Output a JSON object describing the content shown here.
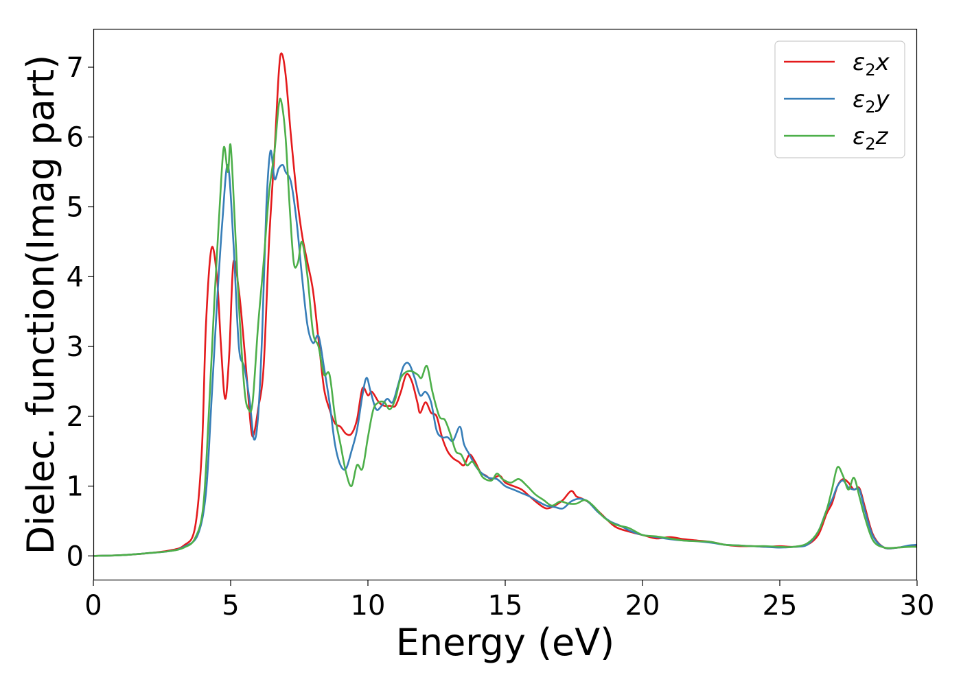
{
  "chart_data": {
    "type": "line",
    "title": "",
    "xlabel": "Energy (eV)",
    "ylabel": "Dielec. function(Imag part)",
    "xlim": [
      0,
      30
    ],
    "ylim": [
      -0.35,
      7.55
    ],
    "xticks": [
      0,
      5,
      10,
      15,
      20,
      25,
      30
    ],
    "yticks": [
      0,
      1,
      2,
      3,
      4,
      5,
      6,
      7
    ],
    "grid": false,
    "legend_position": "top-right",
    "series": [
      {
        "name": "ε₂x",
        "legend_base": "ε",
        "legend_sub": "2",
        "legend_suffix": "x",
        "color": "#e41a1c",
        "points": [
          [
            0,
            0
          ],
          [
            1,
            0.01
          ],
          [
            2,
            0.04
          ],
          [
            2.8,
            0.08
          ],
          [
            3.3,
            0.15
          ],
          [
            3.7,
            0.4
          ],
          [
            3.95,
            1.5
          ],
          [
            4.1,
            3.3
          ],
          [
            4.3,
            4.4
          ],
          [
            4.5,
            4.0
          ],
          [
            4.65,
            3.0
          ],
          [
            4.8,
            2.25
          ],
          [
            4.95,
            2.9
          ],
          [
            5.1,
            4.2
          ],
          [
            5.3,
            3.8
          ],
          [
            5.45,
            3.2
          ],
          [
            5.6,
            2.5
          ],
          [
            5.75,
            1.8
          ],
          [
            5.85,
            1.75
          ],
          [
            6.0,
            2.1
          ],
          [
            6.2,
            2.7
          ],
          [
            6.4,
            4.5
          ],
          [
            6.6,
            5.8
          ],
          [
            6.75,
            6.9
          ],
          [
            6.85,
            7.2
          ],
          [
            7.0,
            6.9
          ],
          [
            7.2,
            6.0
          ],
          [
            7.4,
            5.2
          ],
          [
            7.6,
            4.6
          ],
          [
            7.8,
            4.2
          ],
          [
            8.0,
            3.8
          ],
          [
            8.2,
            3.1
          ],
          [
            8.4,
            2.4
          ],
          [
            8.6,
            2.1
          ],
          [
            8.8,
            1.9
          ],
          [
            9.0,
            1.85
          ],
          [
            9.2,
            1.75
          ],
          [
            9.4,
            1.75
          ],
          [
            9.6,
            1.95
          ],
          [
            9.8,
            2.4
          ],
          [
            10.0,
            2.3
          ],
          [
            10.15,
            2.35
          ],
          [
            10.4,
            2.2
          ],
          [
            10.6,
            2.15
          ],
          [
            10.8,
            2.15
          ],
          [
            11.0,
            2.15
          ],
          [
            11.2,
            2.35
          ],
          [
            11.4,
            2.6
          ],
          [
            11.6,
            2.5
          ],
          [
            11.8,
            2.2
          ],
          [
            11.9,
            2.05
          ],
          [
            12.1,
            2.2
          ],
          [
            12.3,
            2.05
          ],
          [
            12.5,
            2.0
          ],
          [
            12.7,
            1.7
          ],
          [
            12.9,
            1.5
          ],
          [
            13.1,
            1.4
          ],
          [
            13.3,
            1.35
          ],
          [
            13.5,
            1.3
          ],
          [
            13.7,
            1.45
          ],
          [
            13.9,
            1.35
          ],
          [
            14.1,
            1.2
          ],
          [
            14.3,
            1.15
          ],
          [
            14.5,
            1.1
          ],
          [
            14.8,
            1.15
          ],
          [
            15.0,
            1.05
          ],
          [
            15.3,
            1.0
          ],
          [
            15.6,
            0.95
          ],
          [
            15.9,
            0.85
          ],
          [
            16.2,
            0.75
          ],
          [
            16.5,
            0.68
          ],
          [
            16.8,
            0.72
          ],
          [
            17.1,
            0.8
          ],
          [
            17.4,
            0.93
          ],
          [
            17.6,
            0.85
          ],
          [
            17.8,
            0.82
          ],
          [
            18.1,
            0.75
          ],
          [
            18.5,
            0.6
          ],
          [
            19.0,
            0.42
          ],
          [
            19.5,
            0.35
          ],
          [
            20.0,
            0.3
          ],
          [
            20.5,
            0.25
          ],
          [
            21.0,
            0.27
          ],
          [
            21.5,
            0.24
          ],
          [
            22.0,
            0.22
          ],
          [
            22.5,
            0.2
          ],
          [
            23.0,
            0.16
          ],
          [
            23.5,
            0.14
          ],
          [
            24.0,
            0.14
          ],
          [
            24.5,
            0.13
          ],
          [
            25.0,
            0.14
          ],
          [
            25.5,
            0.13
          ],
          [
            26.0,
            0.16
          ],
          [
            26.4,
            0.3
          ],
          [
            26.7,
            0.6
          ],
          [
            26.9,
            0.75
          ],
          [
            27.1,
            1.0
          ],
          [
            27.3,
            1.1
          ],
          [
            27.5,
            1.05
          ],
          [
            27.7,
            0.95
          ],
          [
            27.9,
            0.97
          ],
          [
            28.1,
            0.7
          ],
          [
            28.4,
            0.3
          ],
          [
            28.8,
            0.12
          ],
          [
            29.3,
            0.12
          ],
          [
            29.7,
            0.14
          ],
          [
            30,
            0.14
          ]
        ]
      },
      {
        "name": "ε₂y",
        "legend_base": "ε",
        "legend_sub": "2",
        "legend_suffix": "y",
        "color": "#377eb8",
        "points": [
          [
            0,
            0
          ],
          [
            1,
            0.01
          ],
          [
            2,
            0.04
          ],
          [
            2.8,
            0.07
          ],
          [
            3.3,
            0.13
          ],
          [
            3.8,
            0.3
          ],
          [
            4.1,
            0.9
          ],
          [
            4.3,
            2.2
          ],
          [
            4.5,
            3.6
          ],
          [
            4.7,
            4.8
          ],
          [
            4.9,
            5.6
          ],
          [
            5.1,
            4.5
          ],
          [
            5.3,
            3.0
          ],
          [
            5.5,
            2.7
          ],
          [
            5.7,
            2.2
          ],
          [
            5.85,
            1.67
          ],
          [
            6.0,
            2.0
          ],
          [
            6.15,
            3.2
          ],
          [
            6.3,
            5.0
          ],
          [
            6.45,
            5.8
          ],
          [
            6.6,
            5.4
          ],
          [
            6.75,
            5.55
          ],
          [
            6.9,
            5.6
          ],
          [
            7.0,
            5.5
          ],
          [
            7.2,
            5.35
          ],
          [
            7.4,
            4.8
          ],
          [
            7.6,
            4.0
          ],
          [
            7.8,
            3.3
          ],
          [
            8.0,
            3.05
          ],
          [
            8.2,
            3.15
          ],
          [
            8.4,
            2.7
          ],
          [
            8.6,
            2.2
          ],
          [
            8.8,
            1.6
          ],
          [
            9.0,
            1.3
          ],
          [
            9.2,
            1.25
          ],
          [
            9.4,
            1.5
          ],
          [
            9.6,
            1.8
          ],
          [
            9.8,
            2.3
          ],
          [
            9.95,
            2.55
          ],
          [
            10.1,
            2.35
          ],
          [
            10.3,
            2.1
          ],
          [
            10.5,
            2.15
          ],
          [
            10.7,
            2.25
          ],
          [
            10.9,
            2.2
          ],
          [
            11.1,
            2.45
          ],
          [
            11.3,
            2.72
          ],
          [
            11.5,
            2.75
          ],
          [
            11.7,
            2.55
          ],
          [
            11.9,
            2.3
          ],
          [
            12.1,
            2.35
          ],
          [
            12.3,
            2.2
          ],
          [
            12.5,
            1.8
          ],
          [
            12.7,
            1.7
          ],
          [
            12.9,
            1.7
          ],
          [
            13.1,
            1.65
          ],
          [
            13.35,
            1.85
          ],
          [
            13.5,
            1.6
          ],
          [
            13.7,
            1.45
          ],
          [
            13.9,
            1.3
          ],
          [
            14.1,
            1.2
          ],
          [
            14.4,
            1.12
          ],
          [
            14.7,
            1.1
          ],
          [
            15.0,
            1.0
          ],
          [
            15.3,
            0.95
          ],
          [
            15.6,
            0.9
          ],
          [
            15.9,
            0.85
          ],
          [
            16.2,
            0.78
          ],
          [
            16.5,
            0.72
          ],
          [
            16.8,
            0.7
          ],
          [
            17.1,
            0.68
          ],
          [
            17.4,
            0.78
          ],
          [
            17.7,
            0.82
          ],
          [
            18.0,
            0.78
          ],
          [
            18.4,
            0.62
          ],
          [
            18.8,
            0.5
          ],
          [
            19.2,
            0.43
          ],
          [
            19.6,
            0.35
          ],
          [
            20.0,
            0.3
          ],
          [
            20.5,
            0.27
          ],
          [
            21.0,
            0.24
          ],
          [
            21.5,
            0.22
          ],
          [
            22.0,
            0.21
          ],
          [
            22.5,
            0.19
          ],
          [
            23.0,
            0.16
          ],
          [
            23.5,
            0.15
          ],
          [
            24.0,
            0.14
          ],
          [
            24.5,
            0.13
          ],
          [
            25.0,
            0.12
          ],
          [
            25.5,
            0.13
          ],
          [
            26.0,
            0.16
          ],
          [
            26.4,
            0.35
          ],
          [
            26.7,
            0.65
          ],
          [
            26.9,
            0.8
          ],
          [
            27.1,
            1.0
          ],
          [
            27.3,
            1.08
          ],
          [
            27.5,
            0.98
          ],
          [
            27.7,
            0.95
          ],
          [
            27.9,
            0.95
          ],
          [
            28.1,
            0.65
          ],
          [
            28.4,
            0.28
          ],
          [
            28.8,
            0.12
          ],
          [
            29.3,
            0.12
          ],
          [
            29.7,
            0.15
          ],
          [
            30,
            0.16
          ]
        ]
      },
      {
        "name": "ε₂z",
        "legend_base": "ε",
        "legend_sub": "2",
        "legend_suffix": "z",
        "color": "#4daf4a",
        "points": [
          [
            0,
            0
          ],
          [
            1,
            0.01
          ],
          [
            2,
            0.04
          ],
          [
            2.8,
            0.07
          ],
          [
            3.3,
            0.12
          ],
          [
            3.7,
            0.25
          ],
          [
            4.0,
            0.7
          ],
          [
            4.2,
            2.0
          ],
          [
            4.4,
            3.6
          ],
          [
            4.6,
            5.0
          ],
          [
            4.75,
            5.85
          ],
          [
            4.9,
            5.5
          ],
          [
            5.0,
            5.88
          ],
          [
            5.15,
            4.8
          ],
          [
            5.3,
            3.6
          ],
          [
            5.5,
            2.4
          ],
          [
            5.65,
            2.1
          ],
          [
            5.8,
            2.2
          ],
          [
            6.0,
            3.3
          ],
          [
            6.2,
            4.2
          ],
          [
            6.4,
            5.2
          ],
          [
            6.6,
            5.8
          ],
          [
            6.75,
            6.45
          ],
          [
            6.85,
            6.5
          ],
          [
            7.0,
            6.0
          ],
          [
            7.15,
            5.0
          ],
          [
            7.3,
            4.2
          ],
          [
            7.45,
            4.2
          ],
          [
            7.6,
            4.5
          ],
          [
            7.8,
            4.0
          ],
          [
            8.0,
            3.2
          ],
          [
            8.2,
            3.0
          ],
          [
            8.4,
            2.6
          ],
          [
            8.6,
            2.6
          ],
          [
            8.8,
            2.0
          ],
          [
            9.0,
            1.6
          ],
          [
            9.2,
            1.2
          ],
          [
            9.4,
            1.0
          ],
          [
            9.6,
            1.3
          ],
          [
            9.8,
            1.25
          ],
          [
            10.0,
            1.7
          ],
          [
            10.2,
            2.1
          ],
          [
            10.4,
            2.2
          ],
          [
            10.6,
            2.2
          ],
          [
            10.8,
            2.1
          ],
          [
            11.0,
            2.25
          ],
          [
            11.2,
            2.55
          ],
          [
            11.5,
            2.65
          ],
          [
            11.8,
            2.6
          ],
          [
            11.95,
            2.55
          ],
          [
            12.15,
            2.72
          ],
          [
            12.35,
            2.35
          ],
          [
            12.6,
            2.0
          ],
          [
            12.8,
            1.95
          ],
          [
            13.0,
            1.75
          ],
          [
            13.2,
            1.5
          ],
          [
            13.4,
            1.45
          ],
          [
            13.6,
            1.3
          ],
          [
            13.8,
            1.35
          ],
          [
            14.0,
            1.25
          ],
          [
            14.2,
            1.12
          ],
          [
            14.5,
            1.08
          ],
          [
            14.7,
            1.18
          ],
          [
            14.9,
            1.1
          ],
          [
            15.2,
            1.05
          ],
          [
            15.5,
            1.1
          ],
          [
            15.8,
            1.0
          ],
          [
            16.1,
            0.88
          ],
          [
            16.4,
            0.8
          ],
          [
            16.7,
            0.72
          ],
          [
            17.0,
            0.78
          ],
          [
            17.3,
            0.75
          ],
          [
            17.6,
            0.75
          ],
          [
            17.9,
            0.8
          ],
          [
            18.2,
            0.72
          ],
          [
            18.6,
            0.55
          ],
          [
            19.0,
            0.45
          ],
          [
            19.5,
            0.4
          ],
          [
            20.0,
            0.3
          ],
          [
            20.5,
            0.28
          ],
          [
            21.0,
            0.25
          ],
          [
            21.5,
            0.22
          ],
          [
            22.0,
            0.21
          ],
          [
            22.5,
            0.2
          ],
          [
            23.0,
            0.16
          ],
          [
            23.5,
            0.15
          ],
          [
            24.0,
            0.14
          ],
          [
            24.5,
            0.14
          ],
          [
            25.0,
            0.13
          ],
          [
            25.5,
            0.13
          ],
          [
            26.0,
            0.18
          ],
          [
            26.4,
            0.35
          ],
          [
            26.7,
            0.65
          ],
          [
            26.9,
            0.95
          ],
          [
            27.1,
            1.27
          ],
          [
            27.3,
            1.15
          ],
          [
            27.5,
            0.95
          ],
          [
            27.7,
            1.12
          ],
          [
            27.9,
            0.85
          ],
          [
            28.1,
            0.55
          ],
          [
            28.4,
            0.22
          ],
          [
            28.8,
            0.12
          ],
          [
            29.3,
            0.12
          ],
          [
            29.7,
            0.13
          ],
          [
            30,
            0.13
          ]
        ]
      }
    ]
  }
}
